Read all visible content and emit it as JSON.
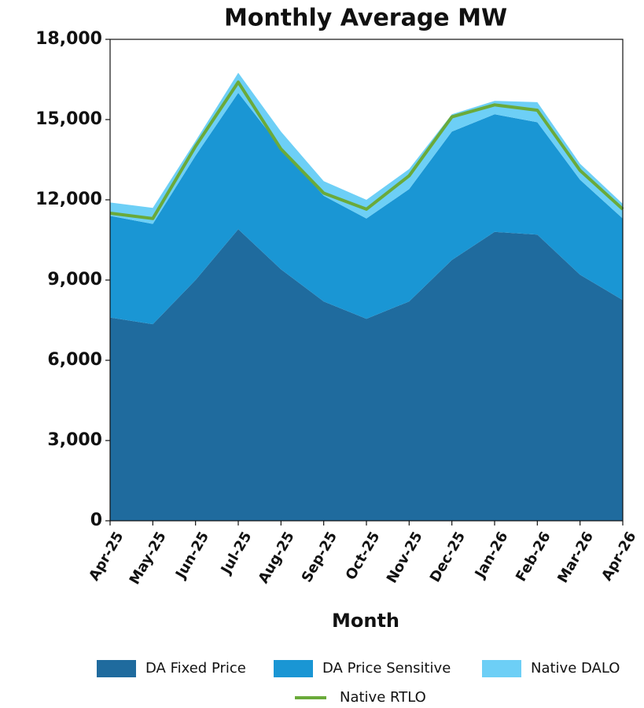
{
  "chart_data": {
    "type": "area",
    "title": "Monthly Average MW",
    "x_label": "Month",
    "categories": [
      "Apr-25",
      "May-25",
      "Jun-25",
      "Jul-25",
      "Aug-25",
      "Sep-25",
      "Oct-25",
      "Nov-25",
      "Dec-25",
      "Jan-26",
      "Feb-26",
      "Mar-26",
      "Apr-26"
    ],
    "series": [
      {
        "name": "DA Fixed Price",
        "color": "#1f6b9e",
        "values": [
          7600,
          7350,
          9000,
          10900,
          9400,
          8200,
          7550,
          8200,
          9750,
          10800,
          10700,
          9200,
          8250
        ]
      },
      {
        "name": "DA Price Sensitive",
        "color": "#1a96d4",
        "values": [
          3800,
          3750,
          4650,
          5100,
          4550,
          3950,
          3750,
          4200,
          4800,
          4400,
          4200,
          3550,
          3050
        ]
      },
      {
        "name": "Native DALO",
        "color": "#6dcff6",
        "values": [
          500,
          600,
          550,
          750,
          600,
          550,
          700,
          750,
          650,
          500,
          750,
          600,
          550
        ]
      },
      {
        "name": "Native RTLO",
        "color": "#6aaa3a",
        "type": "line",
        "values": [
          11500,
          11300,
          14000,
          16400,
          13900,
          12250,
          11650,
          12900,
          15100,
          15550,
          15350,
          13100,
          11650
        ]
      }
    ],
    "ylim": [
      0,
      18000
    ],
    "yticks": [
      0,
      {
        "value": 3000,
        "label": "3,000"
      },
      {
        "value": 6000,
        "label": "6,000"
      },
      {
        "value": 9000,
        "label": "9,000"
      },
      {
        "value": 12000,
        "label": "12,000"
      },
      {
        "value": 15000,
        "label": "15,000"
      },
      {
        "value": 18000,
        "label": "18,000"
      }
    ],
    "legend": "bottom"
  }
}
